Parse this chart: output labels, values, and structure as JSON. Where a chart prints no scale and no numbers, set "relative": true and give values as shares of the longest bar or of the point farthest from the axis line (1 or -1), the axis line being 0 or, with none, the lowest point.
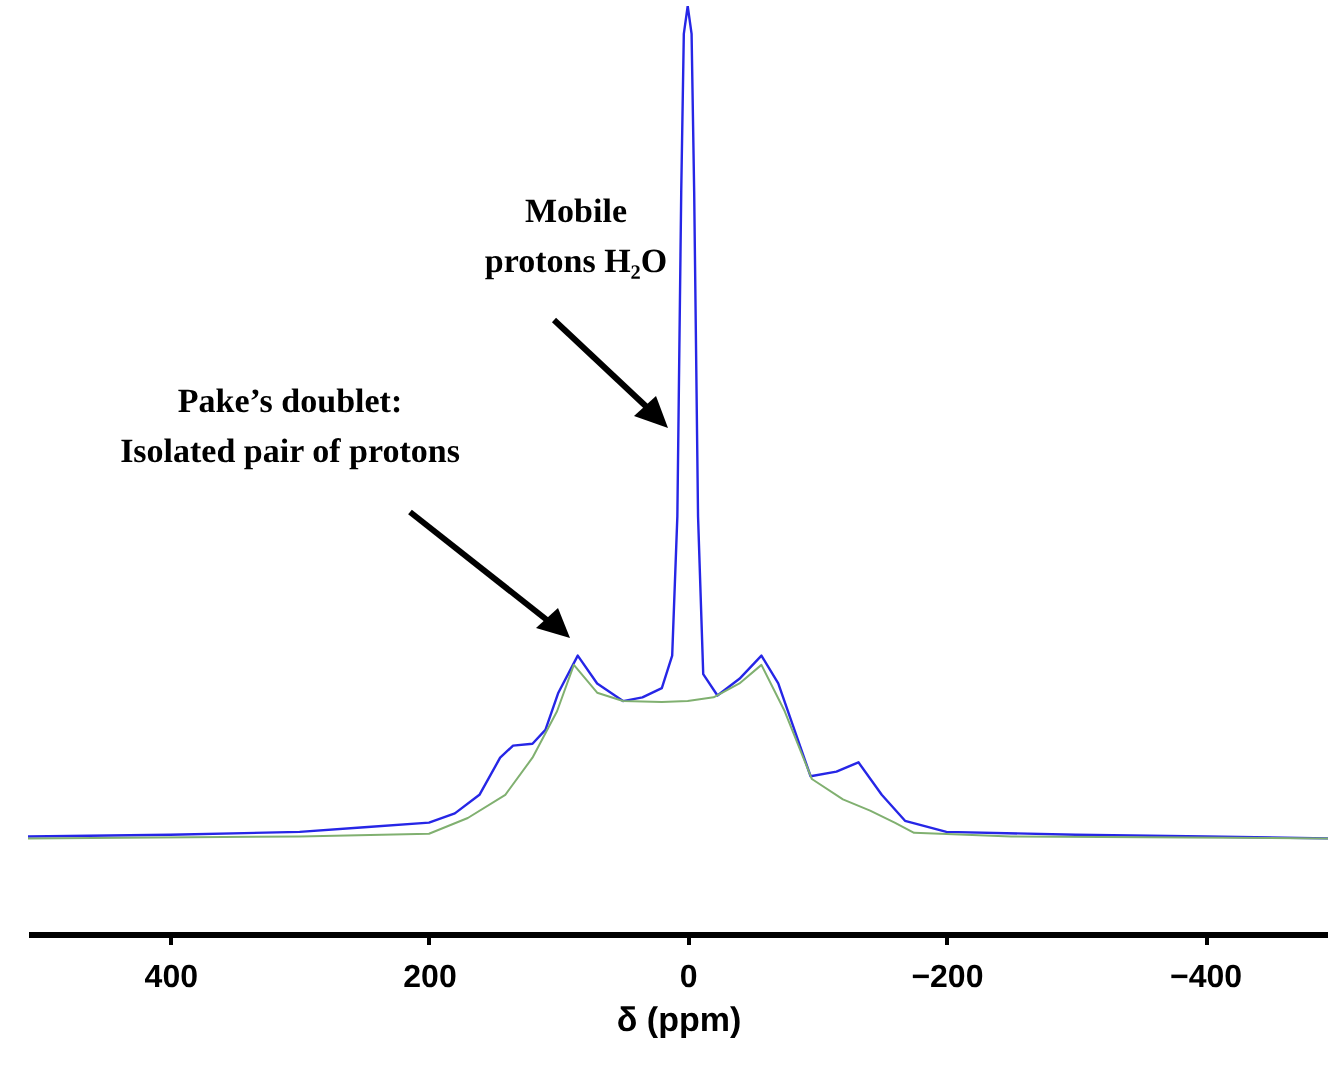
{
  "chart_data": {
    "type": "line",
    "relative": true,
    "xlabel": "δ (ppm)",
    "xlim": [
      510,
      -495
    ],
    "xticks": [
      400,
      200,
      0,
      -200,
      -400
    ],
    "grid": false,
    "annotations": [
      "Mobile\nprotons H₂O",
      "Pake’s doublet:\nIsolated pair of protons"
    ],
    "series": [
      {
        "color": "#2626e6",
        "x": [
          510,
          400,
          300,
          250,
          200,
          180,
          161,
          145,
          135,
          120,
          110,
          100,
          85,
          70,
          50,
          35,
          20,
          12,
          8,
          5,
          3,
          0,
          -3,
          -5,
          -8,
          -12,
          -23,
          -40,
          -57,
          -70,
          -85,
          -95,
          -115,
          -132,
          -150,
          -168,
          -200,
          -300,
          -400,
          -495
        ],
        "values": [
          0.105,
          0.107,
          0.11,
          0.115,
          0.12,
          0.13,
          0.15,
          0.19,
          0.203,
          0.205,
          0.22,
          0.26,
          0.3,
          0.27,
          0.251,
          0.255,
          0.265,
          0.3,
          0.45,
          0.8,
          0.97,
          1,
          0.97,
          0.8,
          0.45,
          0.28,
          0.257,
          0.275,
          0.3,
          0.27,
          0.21,
          0.17,
          0.175,
          0.185,
          0.15,
          0.122,
          0.11,
          0.107,
          0.105,
          0.103
        ]
      },
      {
        "color": "#80b070",
        "x": [
          510,
          300,
          200,
          170,
          141,
          120,
          101,
          88,
          70,
          50,
          20,
          0,
          -20,
          -40,
          -57,
          -75,
          -96,
          -120,
          -141,
          -160,
          -175,
          -250,
          -495
        ],
        "values": [
          0.103,
          0.105,
          0.108,
          0.125,
          0.15,
          0.19,
          0.24,
          0.29,
          0.26,
          0.251,
          0.25,
          0.251,
          0.255,
          0.27,
          0.29,
          0.24,
          0.167,
          0.145,
          0.133,
          0.12,
          0.109,
          0.105,
          0.103
        ]
      }
    ]
  }
}
